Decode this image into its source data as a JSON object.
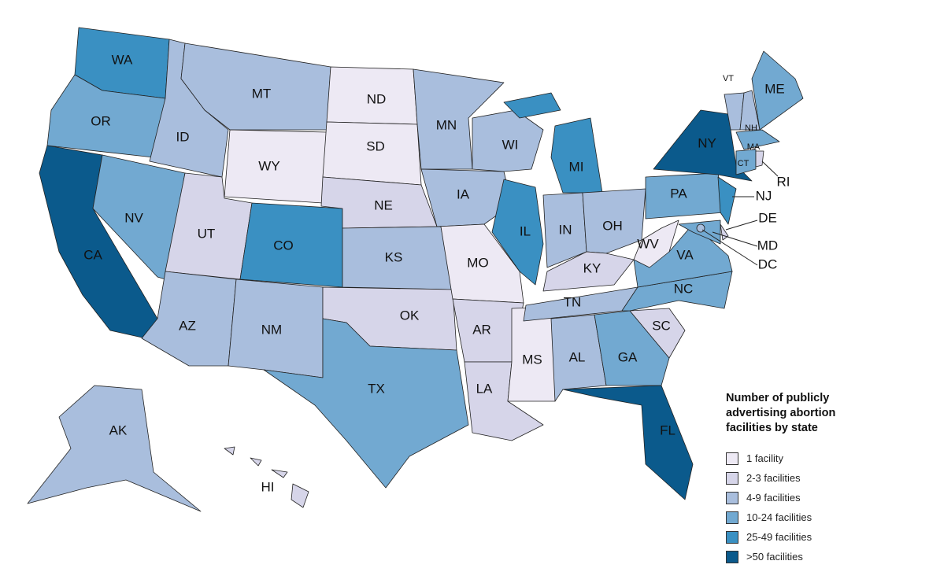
{
  "legend": {
    "title": "Number of publicly advertising abortion facilities by state",
    "items": [
      {
        "label": "1 facility",
        "color": "#ede9f4"
      },
      {
        "label": "2-3 facilities",
        "color": "#d6d5e9"
      },
      {
        "label": "4-9 facilities",
        "color": "#a9bedd"
      },
      {
        "label": "10-24 facilities",
        "color": "#72a9d1"
      },
      {
        "label": "25-49 facilities",
        "color": "#3a90c2"
      },
      {
        "label": ">50 facilities",
        "color": "#0b5a8c"
      }
    ]
  },
  "states": [
    {
      "label": "WA",
      "color": "#3a90c2"
    },
    {
      "label": "OR",
      "color": "#72a9d1"
    },
    {
      "label": "CA",
      "color": "#0b5a8c"
    },
    {
      "label": "NV",
      "color": "#72a9d1"
    },
    {
      "label": "ID",
      "color": "#a9bedd"
    },
    {
      "label": "MT",
      "color": "#a9bedd"
    },
    {
      "label": "WY",
      "color": "#ede9f4"
    },
    {
      "label": "UT",
      "color": "#d6d5e9"
    },
    {
      "label": "CO",
      "color": "#3a90c2"
    },
    {
      "label": "AZ",
      "color": "#a9bedd"
    },
    {
      "label": "NM",
      "color": "#a9bedd"
    },
    {
      "label": "ND",
      "color": "#ede9f4"
    },
    {
      "label": "SD",
      "color": "#ede9f4"
    },
    {
      "label": "NE",
      "color": "#d6d5e9"
    },
    {
      "label": "KS",
      "color": "#a9bedd"
    },
    {
      "label": "OK",
      "color": "#d6d5e9"
    },
    {
      "label": "TX",
      "color": "#72a9d1"
    },
    {
      "label": "MN",
      "color": "#a9bedd"
    },
    {
      "label": "IA",
      "color": "#a9bedd"
    },
    {
      "label": "MO",
      "color": "#ede9f4"
    },
    {
      "label": "AR",
      "color": "#d6d5e9"
    },
    {
      "label": "LA",
      "color": "#d6d5e9"
    },
    {
      "label": "WI",
      "color": "#a9bedd"
    },
    {
      "label": "IL",
      "color": "#3a90c2"
    },
    {
      "label": "MS",
      "color": "#ede9f4"
    },
    {
      "label": "MI",
      "color": "#3a90c2"
    },
    {
      "label": "IN",
      "color": "#a9bedd"
    },
    {
      "label": "OH",
      "color": "#a9bedd"
    },
    {
      "label": "KY",
      "color": "#d6d5e9"
    },
    {
      "label": "TN",
      "color": "#a9bedd"
    },
    {
      "label": "AL",
      "color": "#a9bedd"
    },
    {
      "label": "GA",
      "color": "#72a9d1"
    },
    {
      "label": "FL",
      "color": "#0b5a8c"
    },
    {
      "label": "SC",
      "color": "#d6d5e9"
    },
    {
      "label": "NC",
      "color": "#72a9d1"
    },
    {
      "label": "VA",
      "color": "#72a9d1"
    },
    {
      "label": "WV",
      "color": "#ede9f4"
    },
    {
      "label": "PA",
      "color": "#72a9d1"
    },
    {
      "label": "NY",
      "color": "#0b5a8c"
    },
    {
      "label": "NJ",
      "color": "#3a90c2"
    },
    {
      "label": "DE",
      "color": "#d6d5e9"
    },
    {
      "label": "MD",
      "color": "#72a9d1"
    },
    {
      "label": "DC",
      "color": "#a9bedd"
    },
    {
      "label": "VT",
      "color": "#a9bedd"
    },
    {
      "label": "NH",
      "color": "#a9bedd"
    },
    {
      "label": "ME",
      "color": "#72a9d1"
    },
    {
      "label": "MA",
      "color": "#72a9d1"
    },
    {
      "label": "CT",
      "color": "#72a9d1"
    },
    {
      "label": "RI",
      "color": "#d6d5e9"
    },
    {
      "label": "AK",
      "color": "#a9bedd"
    },
    {
      "label": "HI",
      "color": "#d6d5e9"
    }
  ]
}
